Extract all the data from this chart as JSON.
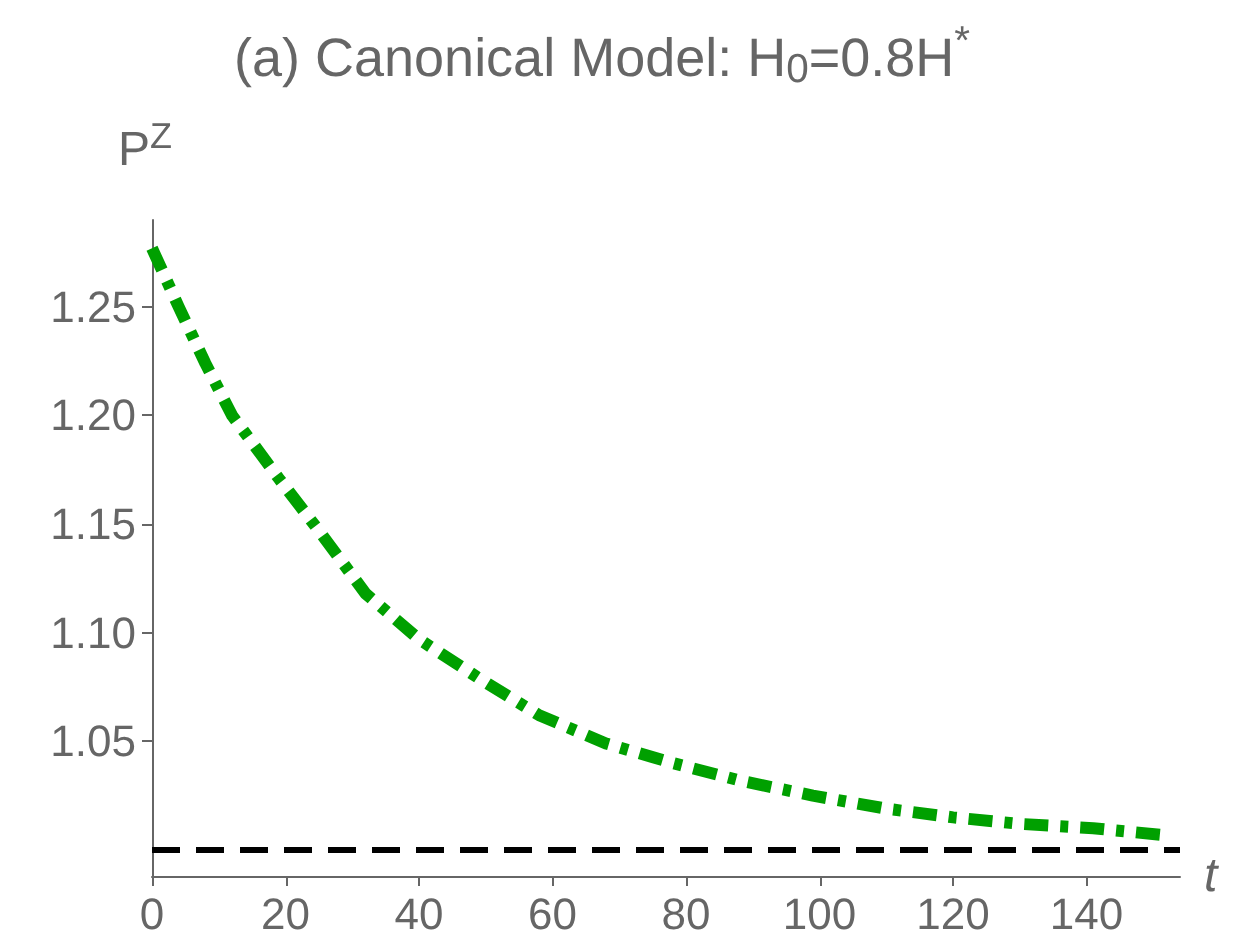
{
  "chart_data": {
    "type": "line",
    "title": "(a) Canonical Model: H$_{0}$=0.8H$^{*}$",
    "xlabel": "t",
    "ylabel": "P$^{Z}$",
    "xlim": [
      0,
      154
    ],
    "ylim": [
      0.988,
      1.29
    ],
    "xticks": [
      0,
      20,
      40,
      60,
      80,
      100,
      120,
      140
    ],
    "yticks": [
      {
        "value": 1.05,
        "label": "1.05"
      },
      {
        "value": 1.1,
        "label": "1.10"
      },
      {
        "value": 1.15,
        "label": "1.15"
      },
      {
        "value": 1.2,
        "label": "1.20"
      },
      {
        "value": 1.25,
        "label": "1.25"
      }
    ],
    "grid": false,
    "marker": "none",
    "series": [
      {
        "color": "#00a000",
        "line_style": "dashdot",
        "x": [
          0,
          4,
          8,
          12,
          19,
          25,
          32,
          40,
          49,
          58,
          68,
          78,
          88,
          99,
          110,
          120,
          130,
          141,
          151
        ],
        "values": [
          1.277,
          1.25,
          1.224,
          1.2,
          1.171,
          1.147,
          1.118,
          1.097,
          1.079,
          1.062,
          1.049,
          1.04,
          1.032,
          1.025,
          1.019,
          1.015,
          1.012,
          1.01,
          1.007
        ]
      }
    ],
    "ref_lines": [
      {
        "axis": "y",
        "value": 1.0,
        "color": "#000000",
        "line_style": "dashed"
      }
    ]
  }
}
